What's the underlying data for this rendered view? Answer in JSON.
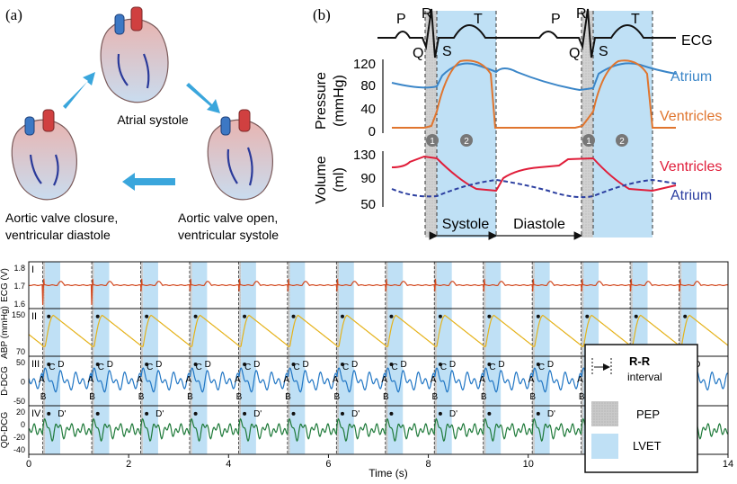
{
  "panel_a": {
    "label": "(a)",
    "phases": {
      "top": "Atrial systole",
      "right_line1": "Aortic valve open,",
      "right_line2": "ventricular systole",
      "left_line1": "Aortic valve closure,",
      "left_line2": "ventricular diastole"
    }
  },
  "panel_b": {
    "label": "(b)",
    "ecg_waves": [
      "P",
      "R",
      "Q",
      "S",
      "T"
    ],
    "ecg_label": "ECG",
    "pressure_axis": {
      "label_line1": "Pressure",
      "label_line2": "(mmHg)",
      "ticks": [
        "120",
        "80",
        "40",
        "0"
      ]
    },
    "volume_axis": {
      "label_line1": "Volume",
      "label_line2": "(ml)",
      "ticks": [
        "130",
        "90",
        "50"
      ]
    },
    "legend": {
      "atrium_pressure": "Atrium",
      "ventricle_pressure": "Ventricles",
      "ventricle_volume": "Ventricles",
      "atrium_volume": "Atrium"
    },
    "markers": [
      "1",
      "2"
    ],
    "phase_labels": {
      "systole": "Systole",
      "diastole": "Diastole"
    },
    "colors": {
      "atrium": "#3b86c8",
      "ventricle": "#e0752e",
      "volume_ventricle": "#e01e3a",
      "volume_atrium": "#2c3fa0",
      "lvet": "#bfe0f5",
      "pep": "#cccccc"
    }
  },
  "chart_data": {
    "type": "line",
    "xlabel": "Time (s)",
    "xlim": [
      0,
      14
    ],
    "x_ticks": [
      "0",
      "2",
      "4",
      "6",
      "8",
      "10",
      "12",
      "14"
    ],
    "beat_period_s": 0.98,
    "first_beat_s": 0.28,
    "pep_s": 0.05,
    "lvet_s": 0.3,
    "rows": [
      {
        "id": "I",
        "ylabel": "ECG (V)",
        "ticks": [
          "1.8",
          "1.7",
          "1.6"
        ],
        "ylim": [
          1.55,
          1.85
        ],
        "color": "#d2481e"
      },
      {
        "id": "II",
        "ylabel": "ABP (mmHg)",
        "ticks": [
          "150",
          "70"
        ],
        "ylim": [
          60,
          160
        ],
        "color": "#e5b21a"
      },
      {
        "id": "III",
        "ylabel": "D-DCG",
        "ticks": [
          "50",
          "0",
          "-50"
        ],
        "ylim": [
          -60,
          60
        ],
        "color": "#2176c4",
        "points": [
          "A",
          "B",
          "C",
          "D"
        ]
      },
      {
        "id": "IV",
        "ylabel": "QD-DCG",
        "ticks": [
          "20",
          "0",
          "-20",
          "-40"
        ],
        "ylim": [
          -45,
          30
        ],
        "color": "#1f7a3a",
        "points": [
          "D'"
        ]
      }
    ],
    "legend": {
      "rr": "R-R interval",
      "rr_line1": "R-R",
      "rr_line2": "interval",
      "pep": "PEP",
      "lvet": "LVET"
    }
  }
}
